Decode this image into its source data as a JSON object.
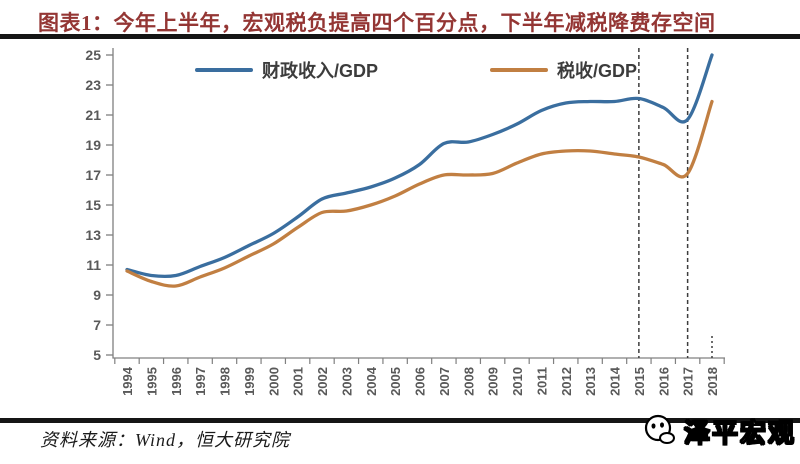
{
  "chart_data": {
    "type": "line",
    "title": "图表1：今年上半年，宏观税负提高四个百分点，下半年减税降费存空间",
    "x": [
      1994,
      1995,
      1996,
      1997,
      1998,
      1999,
      2000,
      2001,
      2002,
      2003,
      2004,
      2005,
      2006,
      2007,
      2008,
      2009,
      2010,
      2011,
      2012,
      2013,
      2014,
      2015,
      2016,
      2017,
      2018
    ],
    "series": [
      {
        "name": "财政收入/GDP",
        "color": "#3A6E9F",
        "values": [
          10.7,
          10.3,
          10.3,
          10.9,
          11.5,
          12.3,
          13.1,
          14.2,
          15.4,
          15.8,
          16.2,
          16.8,
          17.7,
          19.1,
          19.2,
          19.7,
          20.4,
          21.3,
          21.8,
          21.9,
          21.9,
          22.1,
          21.5,
          20.7,
          25.0
        ]
      },
      {
        "name": "税收/GDP",
        "color": "#C17F42",
        "values": [
          10.6,
          9.9,
          9.6,
          10.2,
          10.8,
          11.6,
          12.4,
          13.5,
          14.5,
          14.6,
          15.0,
          15.6,
          16.4,
          17.0,
          17.0,
          17.1,
          17.8,
          18.4,
          18.6,
          18.6,
          18.4,
          18.2,
          17.7,
          17.1,
          21.9
        ]
      }
    ],
    "ylim": [
      5,
      25
    ],
    "ytick_step": 2,
    "grid": false,
    "legend_position": "top-center",
    "vline_years": [
      2015,
      2017
    ],
    "short_vline_year": 2018,
    "axis_color": "#808080",
    "vline_color": "#3d3d3d"
  },
  "footer": {
    "source_label": "资料来源：Wind，恒大研究院",
    "watermark_text": "泽平宏观"
  }
}
